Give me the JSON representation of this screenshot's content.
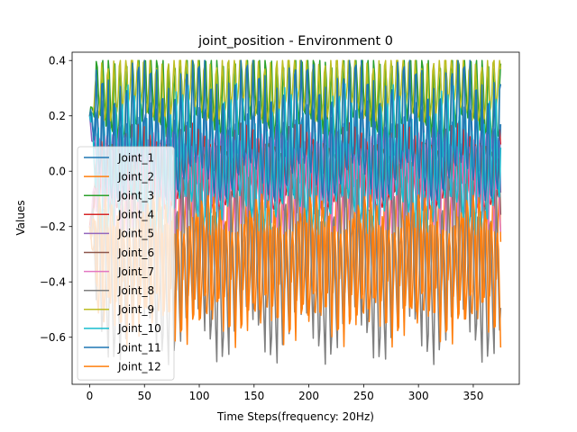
{
  "chart_data": {
    "type": "line",
    "title": "joint_position - Environment 0",
    "xlabel": "Time Steps(frequency: 20Hz)",
    "ylabel": "Values",
    "xlim": [
      -16,
      392
    ],
    "ylim": [
      -0.77,
      0.43
    ],
    "x_ticks": [
      0,
      50,
      100,
      150,
      200,
      250,
      300,
      350
    ],
    "y_ticks": [
      -0.6,
      -0.4,
      -0.2,
      0.0,
      0.2,
      0.4
    ],
    "x_tick_labels": [
      "0",
      "50",
      "100",
      "150",
      "200",
      "250",
      "300",
      "350"
    ],
    "y_tick_labels": [
      "−0.6",
      "−0.4",
      "−0.2",
      "0.0",
      "0.2",
      "0.4"
    ],
    "grid": false,
    "legend_position": "lower-left",
    "num_points": 376,
    "oscillation_period_steps": 5.5,
    "series": [
      {
        "name": "Joint_1",
        "color": "#1f77b4",
        "center": 0.08,
        "amplitude": 0.12,
        "phase": 0.0
      },
      {
        "name": "Joint_2",
        "color": "#ff7f0e",
        "center": -0.3,
        "amplitude": 0.18,
        "phase": 2.0
      },
      {
        "name": "Joint_3",
        "color": "#2ca02c",
        "center": 0.27,
        "amplitude": 0.13,
        "phase": 0.5
      },
      {
        "name": "Joint_4",
        "color": "#d62728",
        "center": -0.01,
        "amplitude": 0.12,
        "phase": 1.3
      },
      {
        "name": "Joint_5",
        "color": "#9467bd",
        "center": 0.0,
        "amplitude": 0.12,
        "phase": 2.6
      },
      {
        "name": "Joint_6",
        "color": "#8c564b",
        "center": -0.01,
        "amplitude": 0.1,
        "phase": 3.3
      },
      {
        "name": "Joint_7",
        "color": "#e377c2",
        "center": -0.03,
        "amplitude": 0.13,
        "phase": 4.0
      },
      {
        "name": "Joint_8",
        "color": "#7f7f7f",
        "center": -0.34,
        "amplitude": 0.26,
        "phase": 4.7
      },
      {
        "name": "Joint_9",
        "color": "#bcbd22",
        "center": 0.3,
        "amplitude": 0.1,
        "phase": 1.6
      },
      {
        "name": "Joint_10",
        "color": "#17becf",
        "center": 0.0,
        "amplitude": 0.2,
        "phase": 5.4
      },
      {
        "name": "Joint_11",
        "color": "#1f77b4",
        "center": 0.12,
        "amplitude": 0.2,
        "phase": 0.9
      },
      {
        "name": "Joint_12",
        "color": "#ff7f0e",
        "center": -0.32,
        "amplitude": 0.2,
        "phase": 3.7
      }
    ]
  }
}
